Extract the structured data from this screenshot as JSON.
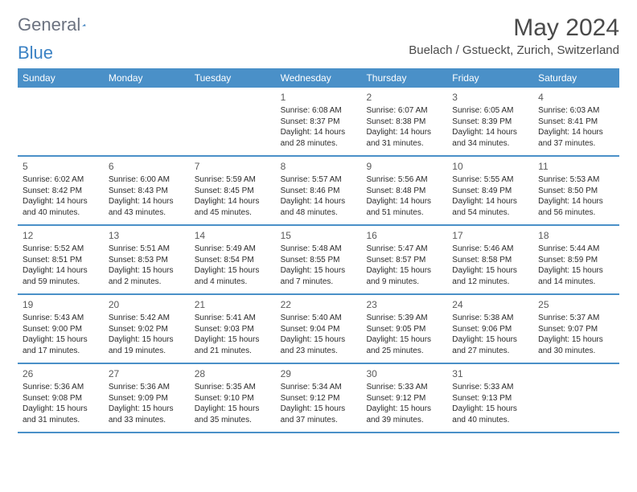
{
  "logo": {
    "text1": "General",
    "text2": "Blue"
  },
  "title": "May 2024",
  "location": "Buelach / Gstueckt, Zurich, Switzerland",
  "colors": {
    "header_bg": "#4a90c8",
    "header_text": "#ffffff",
    "border": "#4a90c8",
    "logo_gray": "#6b7280",
    "logo_blue": "#3b82c4",
    "title_color": "#4a4a4a",
    "text_color": "#2b2b2b"
  },
  "weekdays": [
    "Sunday",
    "Monday",
    "Tuesday",
    "Wednesday",
    "Thursday",
    "Friday",
    "Saturday"
  ],
  "weeks": [
    [
      null,
      null,
      null,
      {
        "d": "1",
        "sr": "6:08 AM",
        "ss": "8:37 PM",
        "dl": "14 hours and 28 minutes."
      },
      {
        "d": "2",
        "sr": "6:07 AM",
        "ss": "8:38 PM",
        "dl": "14 hours and 31 minutes."
      },
      {
        "d": "3",
        "sr": "6:05 AM",
        "ss": "8:39 PM",
        "dl": "14 hours and 34 minutes."
      },
      {
        "d": "4",
        "sr": "6:03 AM",
        "ss": "8:41 PM",
        "dl": "14 hours and 37 minutes."
      }
    ],
    [
      {
        "d": "5",
        "sr": "6:02 AM",
        "ss": "8:42 PM",
        "dl": "14 hours and 40 minutes."
      },
      {
        "d": "6",
        "sr": "6:00 AM",
        "ss": "8:43 PM",
        "dl": "14 hours and 43 minutes."
      },
      {
        "d": "7",
        "sr": "5:59 AM",
        "ss": "8:45 PM",
        "dl": "14 hours and 45 minutes."
      },
      {
        "d": "8",
        "sr": "5:57 AM",
        "ss": "8:46 PM",
        "dl": "14 hours and 48 minutes."
      },
      {
        "d": "9",
        "sr": "5:56 AM",
        "ss": "8:48 PM",
        "dl": "14 hours and 51 minutes."
      },
      {
        "d": "10",
        "sr": "5:55 AM",
        "ss": "8:49 PM",
        "dl": "14 hours and 54 minutes."
      },
      {
        "d": "11",
        "sr": "5:53 AM",
        "ss": "8:50 PM",
        "dl": "14 hours and 56 minutes."
      }
    ],
    [
      {
        "d": "12",
        "sr": "5:52 AM",
        "ss": "8:51 PM",
        "dl": "14 hours and 59 minutes."
      },
      {
        "d": "13",
        "sr": "5:51 AM",
        "ss": "8:53 PM",
        "dl": "15 hours and 2 minutes."
      },
      {
        "d": "14",
        "sr": "5:49 AM",
        "ss": "8:54 PM",
        "dl": "15 hours and 4 minutes."
      },
      {
        "d": "15",
        "sr": "5:48 AM",
        "ss": "8:55 PM",
        "dl": "15 hours and 7 minutes."
      },
      {
        "d": "16",
        "sr": "5:47 AM",
        "ss": "8:57 PM",
        "dl": "15 hours and 9 minutes."
      },
      {
        "d": "17",
        "sr": "5:46 AM",
        "ss": "8:58 PM",
        "dl": "15 hours and 12 minutes."
      },
      {
        "d": "18",
        "sr": "5:44 AM",
        "ss": "8:59 PM",
        "dl": "15 hours and 14 minutes."
      }
    ],
    [
      {
        "d": "19",
        "sr": "5:43 AM",
        "ss": "9:00 PM",
        "dl": "15 hours and 17 minutes."
      },
      {
        "d": "20",
        "sr": "5:42 AM",
        "ss": "9:02 PM",
        "dl": "15 hours and 19 minutes."
      },
      {
        "d": "21",
        "sr": "5:41 AM",
        "ss": "9:03 PM",
        "dl": "15 hours and 21 minutes."
      },
      {
        "d": "22",
        "sr": "5:40 AM",
        "ss": "9:04 PM",
        "dl": "15 hours and 23 minutes."
      },
      {
        "d": "23",
        "sr": "5:39 AM",
        "ss": "9:05 PM",
        "dl": "15 hours and 25 minutes."
      },
      {
        "d": "24",
        "sr": "5:38 AM",
        "ss": "9:06 PM",
        "dl": "15 hours and 27 minutes."
      },
      {
        "d": "25",
        "sr": "5:37 AM",
        "ss": "9:07 PM",
        "dl": "15 hours and 30 minutes."
      }
    ],
    [
      {
        "d": "26",
        "sr": "5:36 AM",
        "ss": "9:08 PM",
        "dl": "15 hours and 31 minutes."
      },
      {
        "d": "27",
        "sr": "5:36 AM",
        "ss": "9:09 PM",
        "dl": "15 hours and 33 minutes."
      },
      {
        "d": "28",
        "sr": "5:35 AM",
        "ss": "9:10 PM",
        "dl": "15 hours and 35 minutes."
      },
      {
        "d": "29",
        "sr": "5:34 AM",
        "ss": "9:12 PM",
        "dl": "15 hours and 37 minutes."
      },
      {
        "d": "30",
        "sr": "5:33 AM",
        "ss": "9:12 PM",
        "dl": "15 hours and 39 minutes."
      },
      {
        "d": "31",
        "sr": "5:33 AM",
        "ss": "9:13 PM",
        "dl": "15 hours and 40 minutes."
      },
      null
    ]
  ],
  "labels": {
    "sunrise": "Sunrise:",
    "sunset": "Sunset:",
    "daylight": "Daylight:"
  }
}
